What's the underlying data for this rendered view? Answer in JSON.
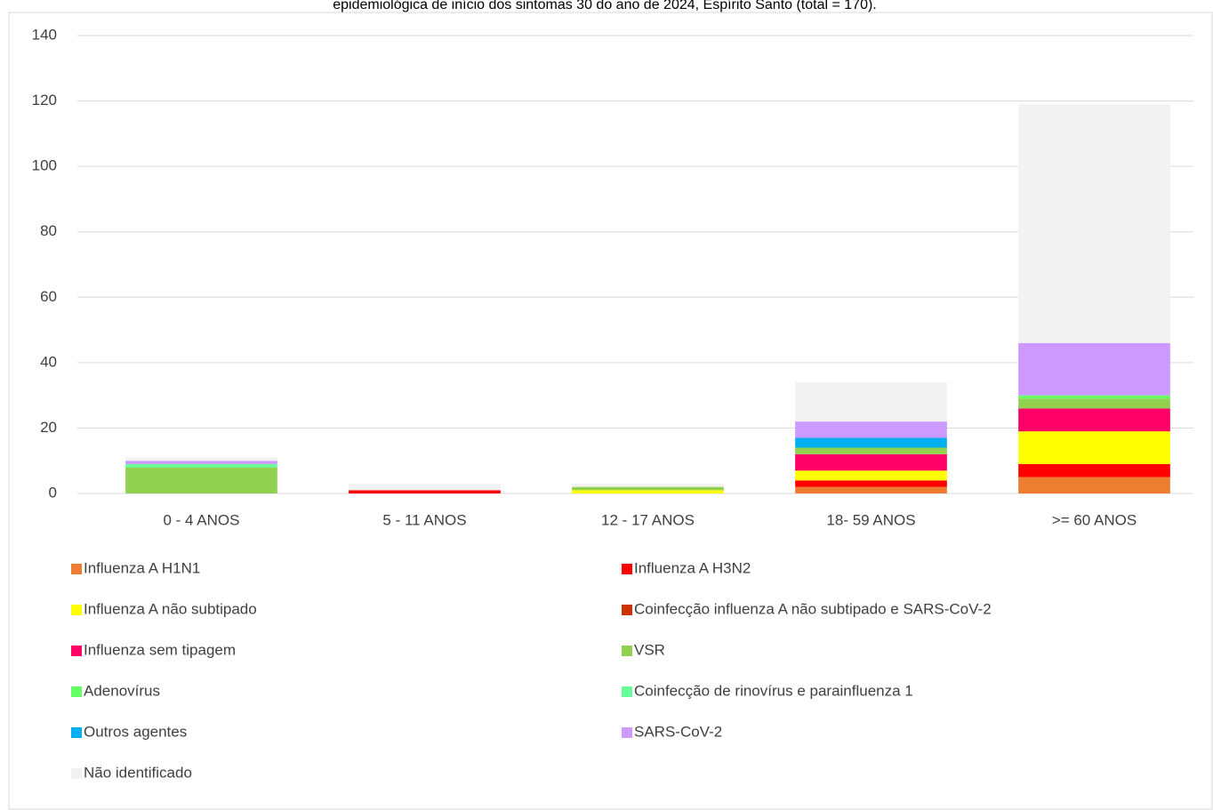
{
  "chart_data": {
    "type": "stacked_bar",
    "title": "epidemiológica de início dos sintomas 30 do ano de 2024, Espírito Santo (total = 170).",
    "categories": [
      "0 - 4 ANOS",
      "5 - 11 ANOS",
      "12 - 17 ANOS",
      "18- 59 ANOS",
      ">= 60 ANOS"
    ],
    "series": [
      {
        "name": "Influenza A H1N1",
        "color": "#ed7d31",
        "values": [
          0,
          0,
          0,
          2,
          5
        ]
      },
      {
        "name": "Influenza A H3N2",
        "color": "#ff0000",
        "values": [
          0,
          1,
          0,
          2,
          4
        ]
      },
      {
        "name": "Influenza A não subtipado",
        "color": "#ffff00",
        "values": [
          0,
          0,
          1,
          3,
          10
        ]
      },
      {
        "name": "Coinfecção influenza A não subtipado e SARS-CoV-2",
        "color": "#cc3300",
        "values": [
          0,
          0,
          0,
          0,
          0
        ]
      },
      {
        "name": "Influenza sem tipagem",
        "color": "#ff0066",
        "values": [
          0,
          0,
          0,
          5,
          7
        ]
      },
      {
        "name": "VSR",
        "color": "#92d050",
        "values": [
          8,
          0,
          1,
          2,
          3
        ]
      },
      {
        "name": "Adenovírus",
        "color": "#66ff66",
        "values": [
          0,
          0,
          0,
          0,
          1
        ]
      },
      {
        "name": "Coinfecção de rinovírus e parainfluenza 1",
        "color": "#66ff99",
        "values": [
          1,
          0,
          0,
          0,
          0
        ]
      },
      {
        "name": "Outros agentes",
        "color": "#00b0f0",
        "values": [
          0,
          0,
          0,
          3,
          0
        ]
      },
      {
        "name": "SARS-CoV-2",
        "color": "#cc99ff",
        "values": [
          1,
          0,
          0,
          5,
          16
        ]
      },
      {
        "name": "Não identificado",
        "color": "#f2f2f2",
        "values": [
          1,
          2,
          1,
          12,
          73
        ]
      }
    ],
    "ylim": [
      0,
      140
    ],
    "yticks": [
      0,
      20,
      40,
      60,
      80,
      100,
      120,
      140
    ],
    "grid": true,
    "legend": "bottom"
  }
}
